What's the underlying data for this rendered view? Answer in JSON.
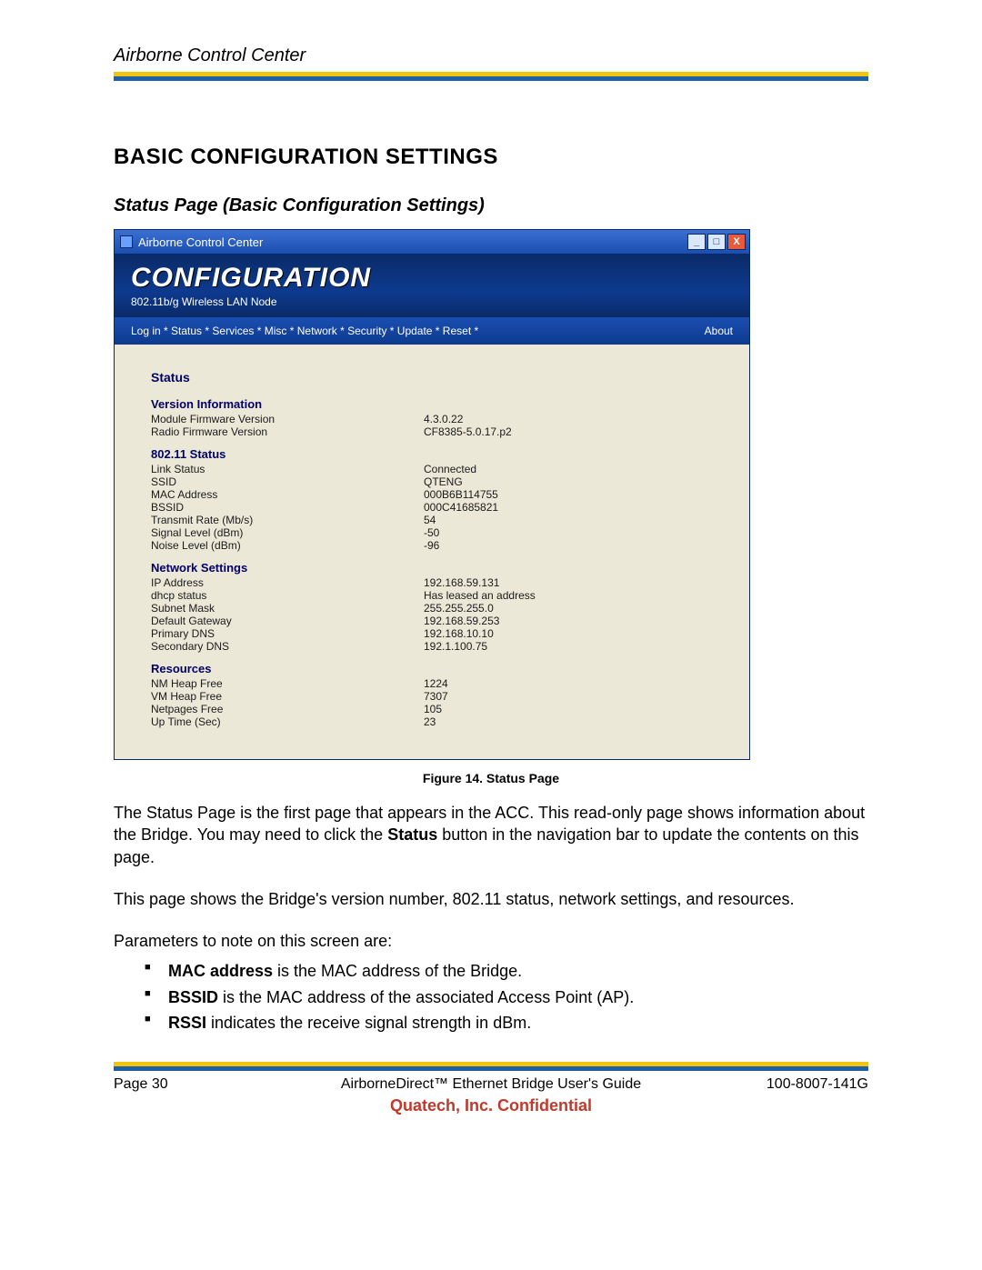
{
  "header": {
    "title": "Airborne Control Center"
  },
  "colors": {
    "rule_yellow": "#f1c40f",
    "rule_blue": "#1f5fa8",
    "banner_dark": "#0a2a66",
    "banner_mid": "#0d3a8f",
    "body_bg": "#ece8d8",
    "heading_navy": "#000066",
    "confidential": "#c0392b",
    "close_btn": "#e85a3b"
  },
  "section": {
    "title": "BASIC CONFIGURATION SETTINGS",
    "subtitle": "Status Page (Basic Configuration Settings)"
  },
  "screenshot": {
    "window_title": "Airborne Control Center",
    "banner_logo": "CONFIGURATION",
    "banner_sub": "802.11b/g Wireless LAN Node",
    "nav_left": "Log in *  Status *  Services *  Misc *  Network *  Security *  Update *  Reset *",
    "nav_right": "About",
    "page_heading": "Status",
    "groups": [
      {
        "heading": "Version Information",
        "rows": [
          {
            "k": "Module Firmware Version",
            "v": "4.3.0.22"
          },
          {
            "k": "Radio Firmware Version",
            "v": "CF8385-5.0.17.p2"
          }
        ]
      },
      {
        "heading": "802.11 Status",
        "rows": [
          {
            "k": "Link Status",
            "v": "Connected"
          },
          {
            "k": "SSID",
            "v": "QTENG"
          },
          {
            "k": "MAC Address",
            "v": "000B6B114755"
          },
          {
            "k": "BSSID",
            "v": "000C41685821"
          },
          {
            "k": "Transmit Rate (Mb/s)",
            "v": "54"
          },
          {
            "k": "Signal Level (dBm)",
            "v": "-50"
          },
          {
            "k": "Noise Level (dBm)",
            "v": "-96"
          }
        ]
      },
      {
        "heading": "Network Settings",
        "rows": [
          {
            "k": "IP Address",
            "v": "192.168.59.131"
          },
          {
            "k": "dhcp status",
            "v": "Has leased an address"
          },
          {
            "k": "Subnet Mask",
            "v": "255.255.255.0"
          },
          {
            "k": "Default Gateway",
            "v": "192.168.59.253"
          },
          {
            "k": "Primary DNS",
            "v": "192.168.10.10"
          },
          {
            "k": "Secondary DNS",
            "v": "192.1.100.75"
          }
        ]
      },
      {
        "heading": "Resources",
        "rows": [
          {
            "k": "NM Heap Free",
            "v": "1224"
          },
          {
            "k": "VM Heap Free",
            "v": "7307"
          },
          {
            "k": "Netpages Free",
            "v": "105"
          },
          {
            "k": "Up Time (Sec)",
            "v": "23"
          }
        ]
      }
    ]
  },
  "caption": "Figure 14.  Status Page",
  "body_text": {
    "p1a": "The Status Page is the first page that appears in the ACC. This read-only page shows information about the Bridge. You may need to click the ",
    "p1_bold": "Status",
    "p1b": " button in the navigation bar to update the contents on this page.",
    "p2": "This page shows the Bridge's version number, 802.11 status, network settings, and resources.",
    "p3": "Parameters to note on this screen are:",
    "bullets": [
      {
        "bold": "MAC address",
        "rest": " is the MAC address of the Bridge."
      },
      {
        "bold": "BSSID",
        "rest": " is the MAC address of the associated Access Point (AP)."
      },
      {
        "bold": "RSSI",
        "rest": " indicates the receive signal strength in dBm."
      }
    ]
  },
  "footer": {
    "page_label": "Page 30",
    "doc_title": "AirborneDirect™ Ethernet Bridge User's Guide",
    "doc_number": "100-8007-141G",
    "confidential": "Quatech, Inc. Confidential"
  }
}
